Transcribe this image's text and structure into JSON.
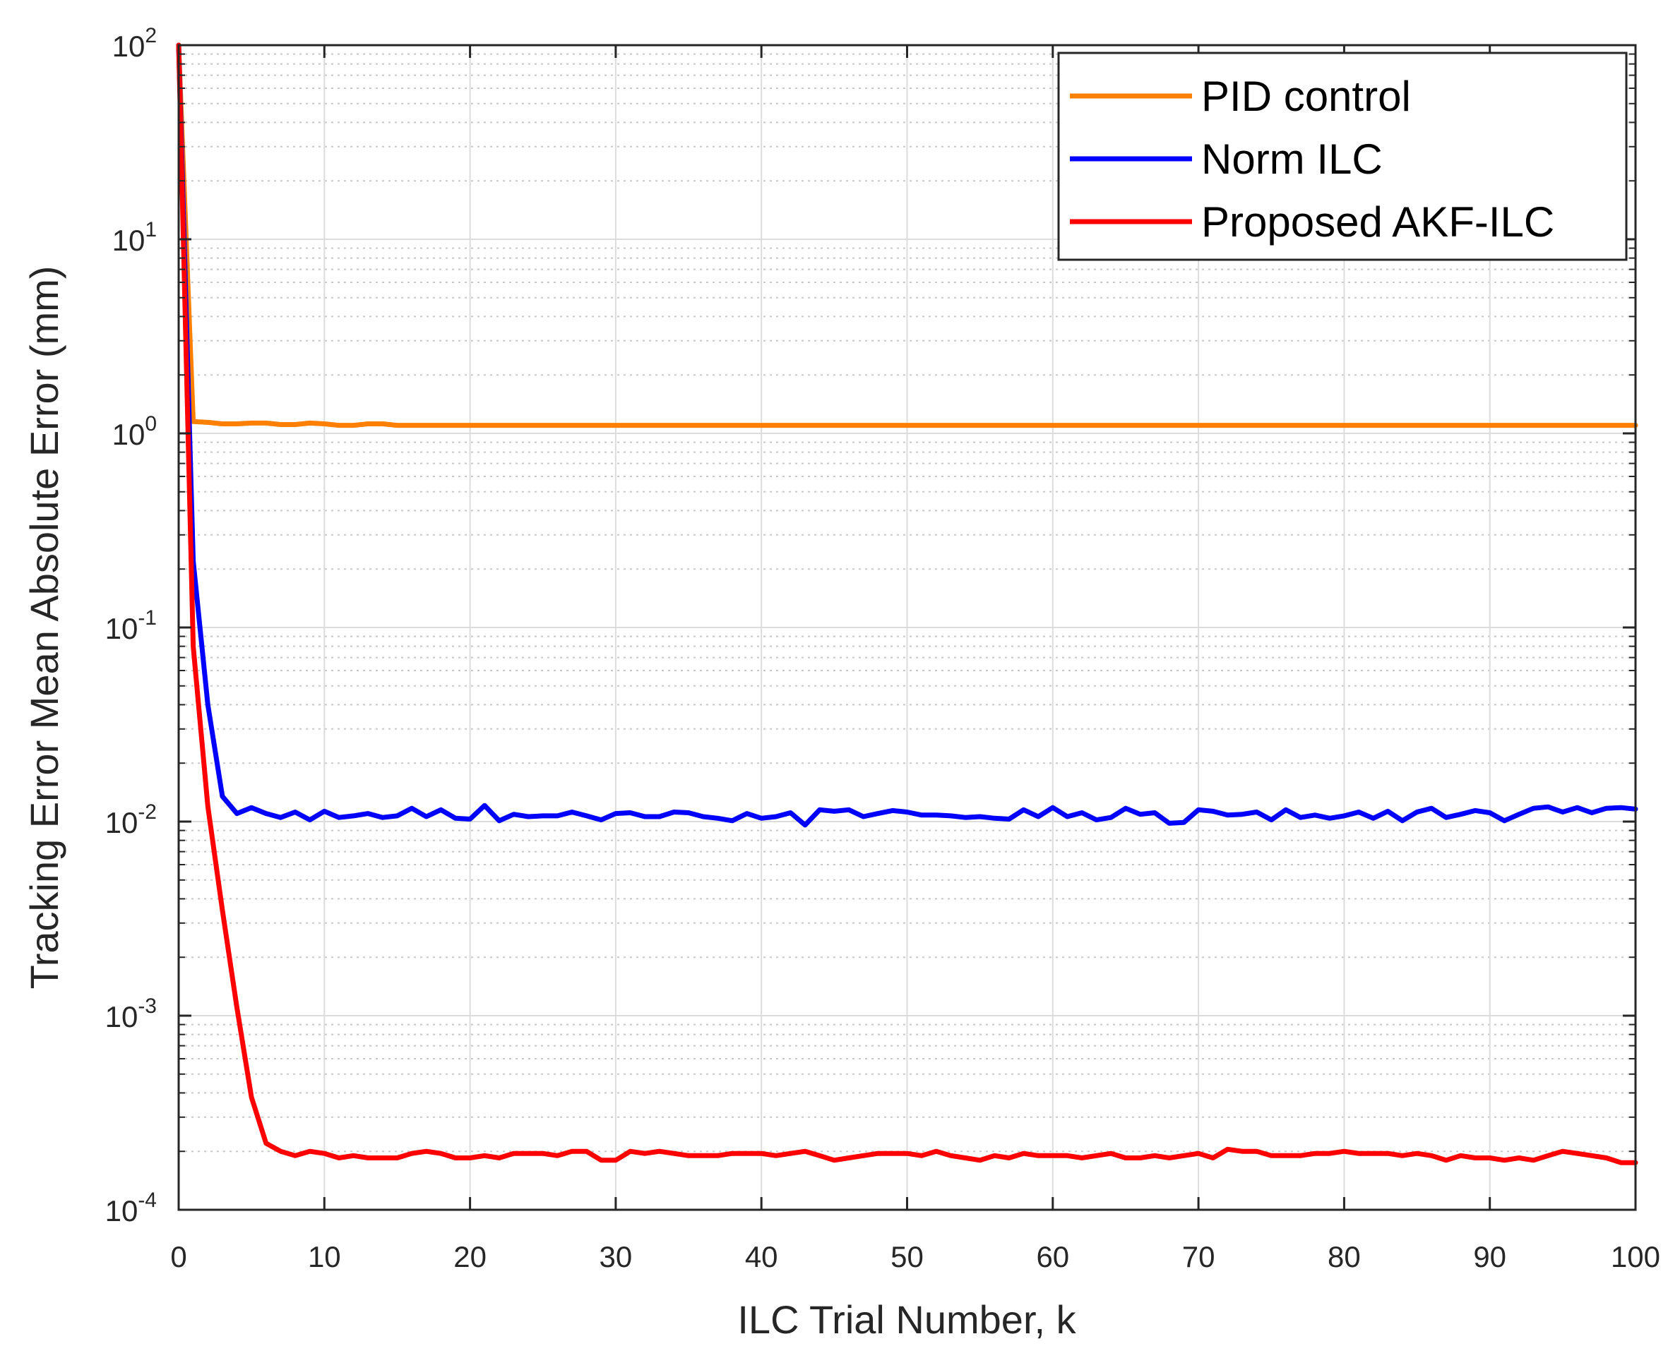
{
  "chart_data": {
    "type": "line",
    "title": "",
    "xlabel": "ILC Trial Number, k",
    "ylabel": "Tracking Error Mean Absolute Error (mm)",
    "xlim": [
      0,
      100
    ],
    "ylim": [
      0.0001,
      100
    ],
    "yscale": "log",
    "grid": true,
    "legend_position": "top-right",
    "x_ticks": [
      0,
      10,
      20,
      30,
      40,
      50,
      60,
      70,
      80,
      90,
      100
    ],
    "x_tick_labels": [
      "0",
      "10",
      "20",
      "30",
      "40",
      "50",
      "60",
      "70",
      "80",
      "90",
      "100"
    ],
    "y_ticks": [
      0.0001,
      0.001,
      0.01,
      0.1,
      1,
      10,
      100
    ],
    "y_tick_labels": [
      {
        "base": "10",
        "exp": "-4"
      },
      {
        "base": "10",
        "exp": "-3"
      },
      {
        "base": "10",
        "exp": "-2"
      },
      {
        "base": "10",
        "exp": "-1"
      },
      {
        "base": "10",
        "exp": "0"
      },
      {
        "base": "10",
        "exp": "1"
      },
      {
        "base": "10",
        "exp": "2"
      }
    ],
    "series": [
      {
        "name": "PID control",
        "color": "#FF8000",
        "x": [
          0,
          1,
          2,
          3,
          4,
          5,
          6,
          7,
          8,
          9,
          10,
          11,
          12,
          13,
          14,
          15,
          16,
          100
        ],
        "values": [
          100,
          1.15,
          1.14,
          1.12,
          1.12,
          1.13,
          1.13,
          1.11,
          1.11,
          1.13,
          1.12,
          1.1,
          1.1,
          1.12,
          1.12,
          1.1,
          1.1,
          1.1
        ]
      },
      {
        "name": "Norm ILC",
        "color": "#0000FF",
        "x": [
          0,
          1,
          2,
          3,
          4,
          5,
          6,
          7,
          8,
          9,
          10,
          11,
          12,
          13,
          14,
          15,
          16,
          17,
          18,
          19,
          20,
          21,
          22,
          23,
          24,
          25,
          26,
          27,
          28,
          29,
          30,
          31,
          32,
          33,
          34,
          35,
          36,
          37,
          38,
          39,
          40,
          41,
          42,
          43,
          44,
          45,
          46,
          47,
          48,
          49,
          50,
          51,
          52,
          53,
          54,
          55,
          56,
          57,
          58,
          59,
          60,
          61,
          62,
          63,
          64,
          65,
          66,
          67,
          68,
          69,
          70,
          71,
          72,
          73,
          74,
          75,
          76,
          77,
          78,
          79,
          80,
          81,
          82,
          83,
          84,
          85,
          86,
          87,
          88,
          89,
          90,
          91,
          92,
          93,
          94,
          95,
          96,
          97,
          98,
          99,
          100
        ],
        "values": [
          100,
          0.22,
          0.04,
          0.0135,
          0.011,
          0.0118,
          0.011,
          0.0105,
          0.0112,
          0.0102,
          0.0113,
          0.0105,
          0.0107,
          0.011,
          0.0105,
          0.0107,
          0.0117,
          0.0106,
          0.0115,
          0.0104,
          0.0103,
          0.0121,
          0.0101,
          0.0109,
          0.0106,
          0.0107,
          0.0107,
          0.0112,
          0.0107,
          0.0102,
          0.011,
          0.0111,
          0.0106,
          0.0106,
          0.0112,
          0.0111,
          0.0106,
          0.0104,
          0.0101,
          0.011,
          0.0104,
          0.0106,
          0.0111,
          0.0096,
          0.0115,
          0.0113,
          0.0115,
          0.0106,
          0.011,
          0.0114,
          0.0112,
          0.0108,
          0.0108,
          0.0107,
          0.0105,
          0.0106,
          0.0104,
          0.0103,
          0.0115,
          0.0106,
          0.0118,
          0.0106,
          0.0111,
          0.0102,
          0.0105,
          0.0117,
          0.0109,
          0.0111,
          0.0098,
          0.0099,
          0.0115,
          0.0113,
          0.0108,
          0.0109,
          0.0112,
          0.0102,
          0.0115,
          0.0105,
          0.0108,
          0.0104,
          0.0107,
          0.0112,
          0.0104,
          0.0113,
          0.0101,
          0.0112,
          0.0117,
          0.0105,
          0.0109,
          0.0114,
          0.0111,
          0.0101,
          0.0109,
          0.0117,
          0.0119,
          0.0112,
          0.0118,
          0.0111,
          0.0117,
          0.0118,
          0.0116
        ]
      },
      {
        "name": "Proposed AKF-ILC",
        "color": "#FF0000",
        "x": [
          0,
          1,
          2,
          3,
          4,
          5,
          6,
          7,
          8,
          9,
          10,
          11,
          12,
          13,
          14,
          15,
          16,
          17,
          18,
          19,
          20,
          21,
          22,
          23,
          24,
          25,
          26,
          27,
          28,
          29,
          30,
          31,
          32,
          33,
          34,
          35,
          36,
          37,
          38,
          39,
          40,
          41,
          42,
          43,
          44,
          45,
          46,
          47,
          48,
          49,
          50,
          51,
          52,
          53,
          54,
          55,
          56,
          57,
          58,
          59,
          60,
          61,
          62,
          63,
          64,
          65,
          66,
          67,
          68,
          69,
          70,
          71,
          72,
          73,
          74,
          75,
          76,
          77,
          78,
          79,
          80,
          81,
          82,
          83,
          84,
          85,
          86,
          87,
          88,
          89,
          90,
          91,
          92,
          93,
          94,
          95,
          96,
          97,
          98,
          99,
          100
        ],
        "values": [
          100,
          0.08,
          0.012,
          0.0035,
          0.0011,
          0.00038,
          0.00022,
          0.0002,
          0.00019,
          0.0002,
          0.000195,
          0.000185,
          0.00019,
          0.000185,
          0.000185,
          0.000185,
          0.000195,
          0.0002,
          0.000195,
          0.000185,
          0.000185,
          0.00019,
          0.000185,
          0.000195,
          0.000195,
          0.000195,
          0.00019,
          0.0002,
          0.0002,
          0.00018,
          0.00018,
          0.0002,
          0.000195,
          0.0002,
          0.000195,
          0.00019,
          0.00019,
          0.00019,
          0.000195,
          0.000195,
          0.000195,
          0.00019,
          0.000195,
          0.0002,
          0.00019,
          0.00018,
          0.000185,
          0.00019,
          0.000195,
          0.000195,
          0.000195,
          0.00019,
          0.0002,
          0.00019,
          0.000185,
          0.00018,
          0.00019,
          0.000185,
          0.000195,
          0.00019,
          0.00019,
          0.00019,
          0.000185,
          0.00019,
          0.000195,
          0.000185,
          0.000185,
          0.00019,
          0.000185,
          0.00019,
          0.000195,
          0.000185,
          0.000205,
          0.0002,
          0.0002,
          0.00019,
          0.00019,
          0.00019,
          0.000195,
          0.000195,
          0.0002,
          0.000195,
          0.000195,
          0.000195,
          0.00019,
          0.000195,
          0.00019,
          0.00018,
          0.00019,
          0.000185,
          0.000185,
          0.00018,
          0.000185,
          0.00018,
          0.00019,
          0.0002,
          0.000195,
          0.00019,
          0.000185,
          0.000175,
          0.000175
        ]
      }
    ]
  }
}
